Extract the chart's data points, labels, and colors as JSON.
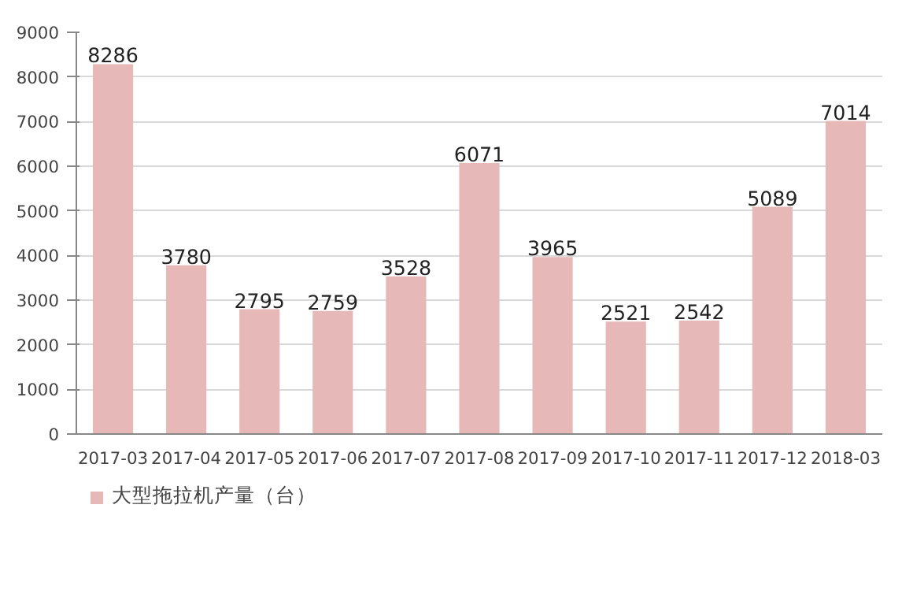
{
  "chart_data": {
    "type": "bar",
    "categories": [
      "2017-03",
      "2017-04",
      "2017-05",
      "2017-06",
      "2017-07",
      "2017-08",
      "2017-09",
      "2017-10",
      "2017-11",
      "2017-12",
      "2018-03"
    ],
    "series": [
      {
        "name": "大型拖拉机产量（台）",
        "color": "#e6b9b8",
        "values": [
          8286,
          3780,
          2795,
          2759,
          3528,
          6071,
          3965,
          2521,
          2542,
          5089,
          7014
        ]
      }
    ],
    "ylim": [
      0,
      9000
    ],
    "yticks": [
      0,
      1000,
      2000,
      3000,
      4000,
      5000,
      6000,
      7000,
      8000,
      9000
    ],
    "grid": "y",
    "legend": "bottom left",
    "data_labels": true
  }
}
